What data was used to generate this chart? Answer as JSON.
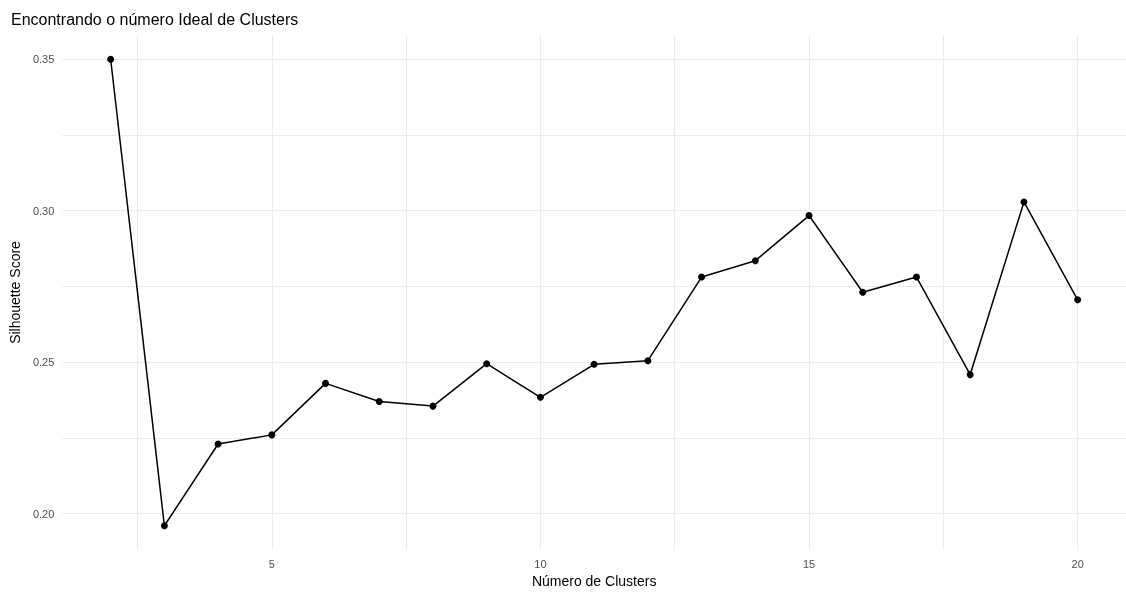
{
  "chart_data": {
    "type": "line",
    "title": "Encontrando o número Ideal de Clusters",
    "xlabel": "Número de Clusters",
    "ylabel": "Silhouette Score",
    "x": [
      2,
      3,
      4,
      5,
      6,
      7,
      8,
      9,
      10,
      11,
      12,
      13,
      14,
      15,
      16,
      17,
      18,
      19,
      20
    ],
    "series": [
      {
        "color": "#000000",
        "values": [
          0.35,
          0.196,
          0.223,
          0.226,
          0.243,
          0.237,
          0.2355,
          0.2495,
          0.2384,
          0.2493,
          0.2505,
          0.2781,
          0.2835,
          0.2984,
          0.2731,
          0.2781,
          0.2459,
          0.3029,
          0.2706
        ]
      }
    ],
    "xlim": [
      1.1,
      20.9
    ],
    "xticks": [
      {
        "value": 2.5,
        "label": null
      },
      5,
      {
        "value": 7.5,
        "label": null
      },
      10,
      {
        "value": 12.5,
        "label": null
      },
      15,
      {
        "value": 17.5,
        "label": null
      },
      20
    ],
    "ylim": [
      0.188,
      0.358
    ],
    "yticks": [
      {
        "value": 0.2,
        "label": "0.20"
      },
      {
        "value": 0.225,
        "label": null
      },
      {
        "value": 0.25,
        "label": "0.25"
      },
      {
        "value": 0.275,
        "label": null
      },
      {
        "value": 0.3,
        "label": "0.30"
      },
      {
        "value": 0.325,
        "label": null
      },
      {
        "value": 0.35,
        "label": "0.35"
      }
    ],
    "grid": true,
    "marker": "circle",
    "line_style": "solid"
  }
}
